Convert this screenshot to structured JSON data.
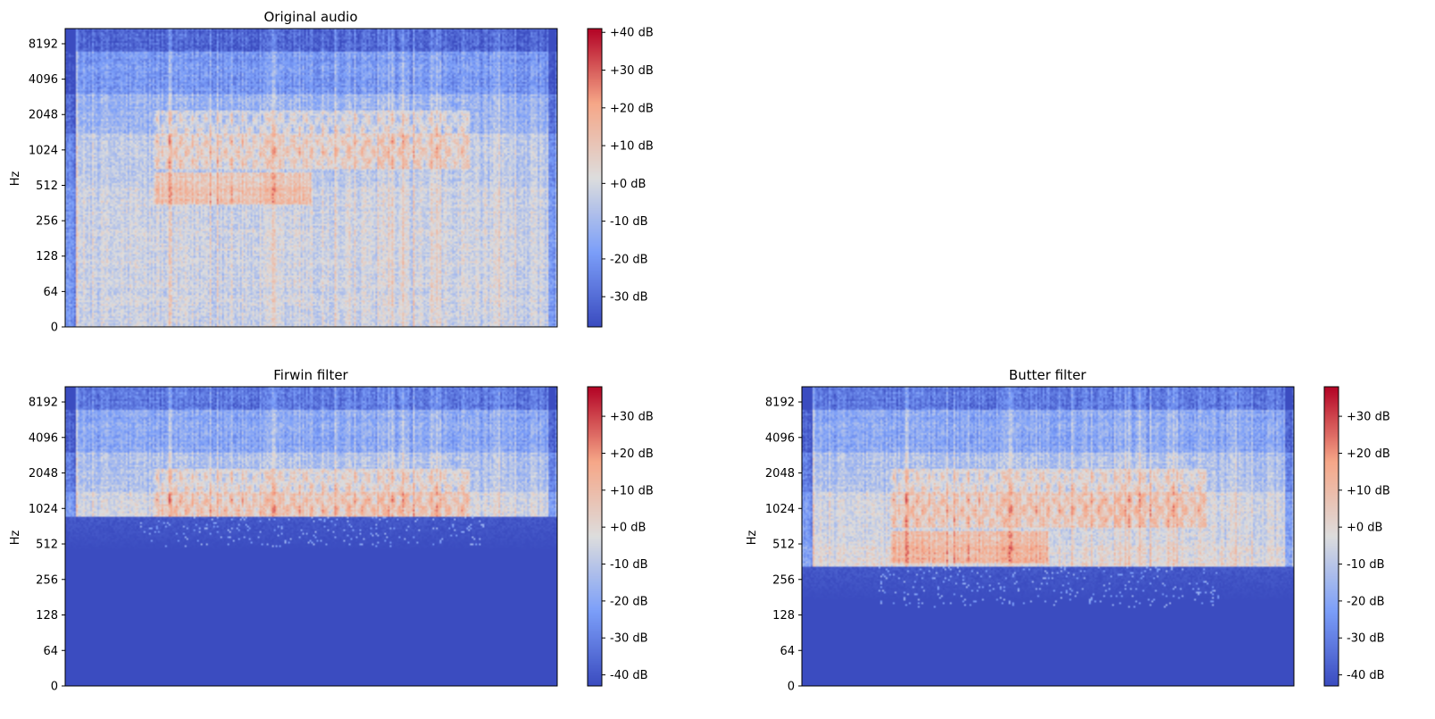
{
  "chart_data": [
    {
      "type": "heatmap",
      "title": "Original audio",
      "ylabel": "Hz",
      "xlabel": "",
      "y_scale": "log2 (symlog, 0 at bottom)",
      "yticks": [
        "0",
        "64",
        "128",
        "256",
        "512",
        "1024",
        "2048",
        "4096",
        "8192"
      ],
      "ytick_values": [
        0,
        64,
        128,
        256,
        512,
        1024,
        2048,
        4096,
        8192
      ],
      "colormap": "coolwarm",
      "colorbar_ticks": [
        "+40 dB",
        "+30 dB",
        "+20 dB",
        "+10 dB",
        "+0 dB",
        "-10 dB",
        "-20 dB",
        "-30 dB"
      ],
      "colorbar_tick_values": [
        40,
        30,
        20,
        10,
        0,
        -10,
        -20,
        -30
      ],
      "colorbar_range": [
        -38,
        41
      ],
      "energy_floor_hz": 0,
      "residual_low_hz": 0
    },
    {
      "type": "heatmap",
      "title": "Firwin filter",
      "ylabel": "Hz",
      "xlabel": "",
      "y_scale": "log2 (symlog, 0 at bottom)",
      "yticks": [
        "0",
        "64",
        "128",
        "256",
        "512",
        "1024",
        "2048",
        "4096",
        "8192"
      ],
      "ytick_values": [
        0,
        64,
        128,
        256,
        512,
        1024,
        2048,
        4096,
        8192
      ],
      "colormap": "coolwarm",
      "colorbar_ticks": [
        "+30 dB",
        "+20 dB",
        "+10 dB",
        "+0 dB",
        "-10 dB",
        "-20 dB",
        "-30 dB",
        "-40 dB"
      ],
      "colorbar_tick_values": [
        30,
        20,
        10,
        0,
        -10,
        -20,
        -30,
        -40
      ],
      "colorbar_range": [
        -43,
        38
      ],
      "energy_floor_hz": 880,
      "residual_low_hz": 480
    },
    {
      "type": "heatmap",
      "title": "Butter filter",
      "ylabel": "Hz",
      "xlabel": "",
      "y_scale": "log2 (symlog, 0 at bottom)",
      "yticks": [
        "0",
        "64",
        "128",
        "256",
        "512",
        "1024",
        "2048",
        "4096",
        "8192"
      ],
      "ytick_values": [
        0,
        64,
        128,
        256,
        512,
        1024,
        2048,
        4096,
        8192
      ],
      "colormap": "coolwarm",
      "colorbar_ticks": [
        "+30 dB",
        "+20 dB",
        "+10 dB",
        "+0 dB",
        "-10 dB",
        "-20 dB",
        "-30 dB",
        "-40 dB"
      ],
      "colorbar_tick_values": [
        30,
        20,
        10,
        0,
        -10,
        -20,
        -30,
        -40
      ],
      "colorbar_range": [
        -43,
        38
      ],
      "energy_floor_hz": 330,
      "residual_low_hz": 150
    }
  ],
  "colors": {
    "cmap_low": "#3b4cc0",
    "cmap_mid": "#dddddd",
    "cmap_high": "#b40426",
    "axes": "#000000",
    "background": "#ffffff"
  }
}
